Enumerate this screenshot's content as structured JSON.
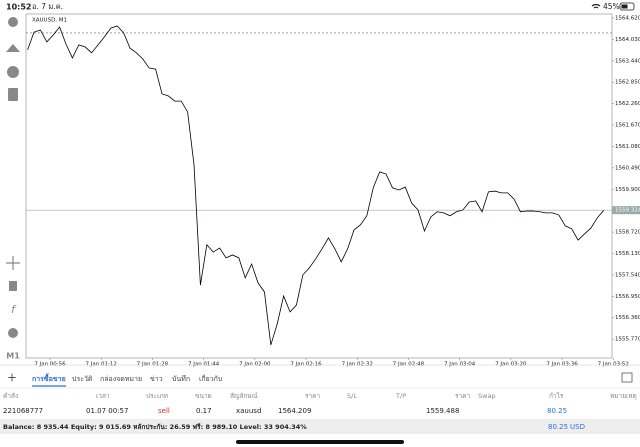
{
  "status_bar": {
    "time": "10:52",
    "date": "อ. 7 ม.ค.",
    "battery": "45%"
  },
  "chart": {
    "type": "line",
    "title": "XAUUSD, M1",
    "color": "#000000",
    "x": [
      49,
      51,
      53,
      55,
      57,
      59,
      61,
      63,
      65,
      67,
      69,
      71,
      73,
      75,
      77,
      79,
      81,
      83,
      85,
      87,
      89,
      91,
      93,
      95,
      97,
      99,
      101,
      103,
      105,
      107,
      109,
      111,
      113,
      115,
      117,
      119,
      121,
      123,
      125,
      127,
      129,
      131,
      133,
      135,
      137,
      139,
      141,
      143,
      145,
      147,
      149,
      151,
      153,
      155,
      157,
      159,
      161,
      163,
      165,
      167,
      169,
      171,
      173,
      175,
      177,
      179,
      181,
      183,
      185,
      187,
      189,
      191,
      193,
      195,
      197,
      199,
      201,
      203,
      205,
      207,
      209,
      211,
      213,
      215,
      217,
      219,
      221,
      223,
      225,
      227,
      229
    ],
    "values": [
      1563.74,
      1564.23,
      1564.29,
      1563.96,
      1564.15,
      1564.37,
      1563.9,
      1563.52,
      1563.88,
      1563.82,
      1563.66,
      1563.88,
      1564.1,
      1564.34,
      1564.4,
      1564.21,
      1563.79,
      1563.66,
      1563.49,
      1563.24,
      1563.21,
      1562.53,
      1562.47,
      1562.33,
      1562.33,
      1562.03,
      1560.57,
      1557.26,
      1558.37,
      1558.17,
      1558.28,
      1558.01,
      1558.09,
      1558.01,
      1557.46,
      1557.84,
      1557.32,
      1557.07,
      1555.61,
      1556.19,
      1556.96,
      1556.52,
      1556.71,
      1557.54,
      1557.73,
      1557.98,
      1558.26,
      1558.56,
      1558.26,
      1557.9,
      1558.26,
      1558.78,
      1558.92,
      1559.17,
      1559.94,
      1560.38,
      1560.32,
      1559.94,
      1559.88,
      1559.96,
      1559.52,
      1559.33,
      1558.75,
      1559.14,
      1559.28,
      1559.25,
      1559.17,
      1559.28,
      1559.33,
      1559.55,
      1559.58,
      1559.28,
      1559.83,
      1559.85,
      1559.8,
      1559.8,
      1559.63,
      1559.28,
      1559.3,
      1559.3,
      1559.28,
      1559.25,
      1559.25,
      1559.19,
      1558.89,
      1558.81,
      1558.5,
      1558.67,
      1558.83,
      1559.11,
      1559.32
    ],
    "xlim": [
      48.5,
      231.6
    ],
    "ylim": [
      1555.25,
      1564.73
    ],
    "xticks": [
      {
        "value": 56,
        "label": "7 Jan 00:56"
      },
      {
        "value": 72,
        "label": "7 Jan 01:12"
      },
      {
        "value": 88,
        "label": "7 Jan 01:28"
      },
      {
        "value": 104,
        "label": "7 Jan 01:44"
      },
      {
        "value": 120,
        "label": "7 Jan 02:00"
      },
      {
        "value": 136,
        "label": "7 Jan 02:16"
      },
      {
        "value": 152,
        "label": "7 Jan 02:32"
      },
      {
        "value": 168,
        "label": "7 Jan 02:48"
      },
      {
        "value": 184,
        "label": "7 Jan 03:04"
      },
      {
        "value": 200,
        "label": "7 Jan 03:20"
      },
      {
        "value": 216,
        "label": "7 Jan 03:36"
      },
      {
        "value": 232,
        "label": "7 Jan 03:52"
      }
    ],
    "yticks": [
      {
        "value": 1564.62,
        "label": "1564.620"
      },
      {
        "value": 1564.03,
        "label": "1564.030"
      },
      {
        "value": 1563.44,
        "label": "1563.440"
      },
      {
        "value": 1562.85,
        "label": "1562.850"
      },
      {
        "value": 1562.26,
        "label": "1562.260"
      },
      {
        "value": 1561.67,
        "label": "1561.670"
      },
      {
        "value": 1561.08,
        "label": "1561.080"
      },
      {
        "value": 1560.49,
        "label": "1560.490"
      },
      {
        "value": 1559.9,
        "label": "1559.900"
      },
      {
        "value": 1558.72,
        "label": "1558.720"
      },
      {
        "value": 1558.13,
        "label": "1558.130"
      },
      {
        "value": 1557.54,
        "label": "1557.540"
      },
      {
        "value": 1556.95,
        "label": "1556.950"
      },
      {
        "value": 1556.36,
        "label": "1556.360"
      },
      {
        "value": 1555.77,
        "label": "1555.770"
      }
    ],
    "current_price": {
      "value": 1559.324,
      "label": "1559.324"
    },
    "order_line": 1564.209,
    "grid": false
  },
  "sidebar": {
    "timeframe": "M1"
  },
  "tabs": [
    "การซื้อขาย",
    "ประวัติ",
    "กล่องจดหมาย",
    "ข่าว",
    "บันทึก",
    "เกี่ยวกับ"
  ],
  "table": {
    "columns": [
      "คำสั่ง",
      "เวลา",
      "ประเภท",
      "ขนาด",
      "สัญลักษณ์",
      "ราคา",
      "S/L",
      "T/P",
      "ราคา",
      "Swap",
      "กำไร",
      "หมายเหตุ"
    ],
    "rows": [
      [
        "221068777",
        "01.07 00:57",
        "sell",
        "0.17",
        "xauusd",
        "1564.209",
        "",
        "",
        "1559.488",
        "",
        "80.25",
        ""
      ]
    ]
  },
  "footer": {
    "summary": "Balance: 8 935.44 Equity: 9 015.69 หลักประกัน: 26.59 ฟรี: 8 989.10 Level: 33 904.34%",
    "profit": "80.25",
    "currency": "USD"
  }
}
